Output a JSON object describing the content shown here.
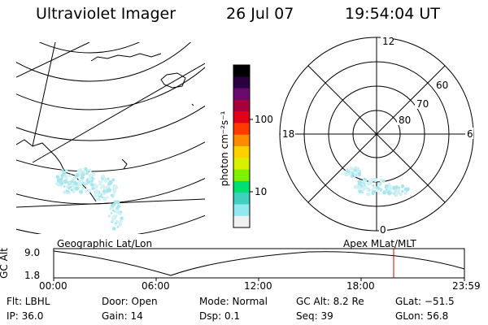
{
  "header": {
    "instrument": "Ultraviolet Imager",
    "date": "26 Jul 07",
    "time": "19:54:04 UT"
  },
  "colorbar": {
    "unit_label": "photon cm⁻²s⁻¹",
    "ticks": [
      "100",
      "10"
    ],
    "colors": [
      "#000000",
      "#2a0040",
      "#6a0a6e",
      "#a8003c",
      "#e0001a",
      "#ff3a00",
      "#ff8c00",
      "#ffd000",
      "#d8f000",
      "#7ef000",
      "#00e070",
      "#40d0c0",
      "#90e8f0",
      "#f0f0f0"
    ]
  },
  "polar": {
    "mlt_labels": {
      "top": "12",
      "left": "18",
      "right": "6",
      "bottom": "0"
    },
    "lat_labels": [
      "60",
      "70",
      "80"
    ]
  },
  "timeline": {
    "ylabel": "GC Alt",
    "yticks": [
      "9.0",
      "1.8"
    ],
    "left_title": "Geographic Lat/Lon",
    "right_title": "Apex MLat/MLT",
    "xticks": [
      "00:00",
      "06:00",
      "12:00",
      "18:00",
      "23:59"
    ],
    "marker_color": "#e00000",
    "marker_time_fraction": 0.829
  },
  "info": {
    "flt": "Flt: LBHL",
    "ip": "IP: 36.0",
    "door": "Door: Open",
    "gain": "Gain: 14",
    "mode": "Mode: Normal",
    "dsp": "Dsp:    0.1",
    "gcalt": "GC Alt: 8.2 Re",
    "seq": "Seq: 39",
    "glat": "GLat: −51.5",
    "glon": "GLon:  56.8"
  },
  "aurora_color": "#a8e6ee"
}
